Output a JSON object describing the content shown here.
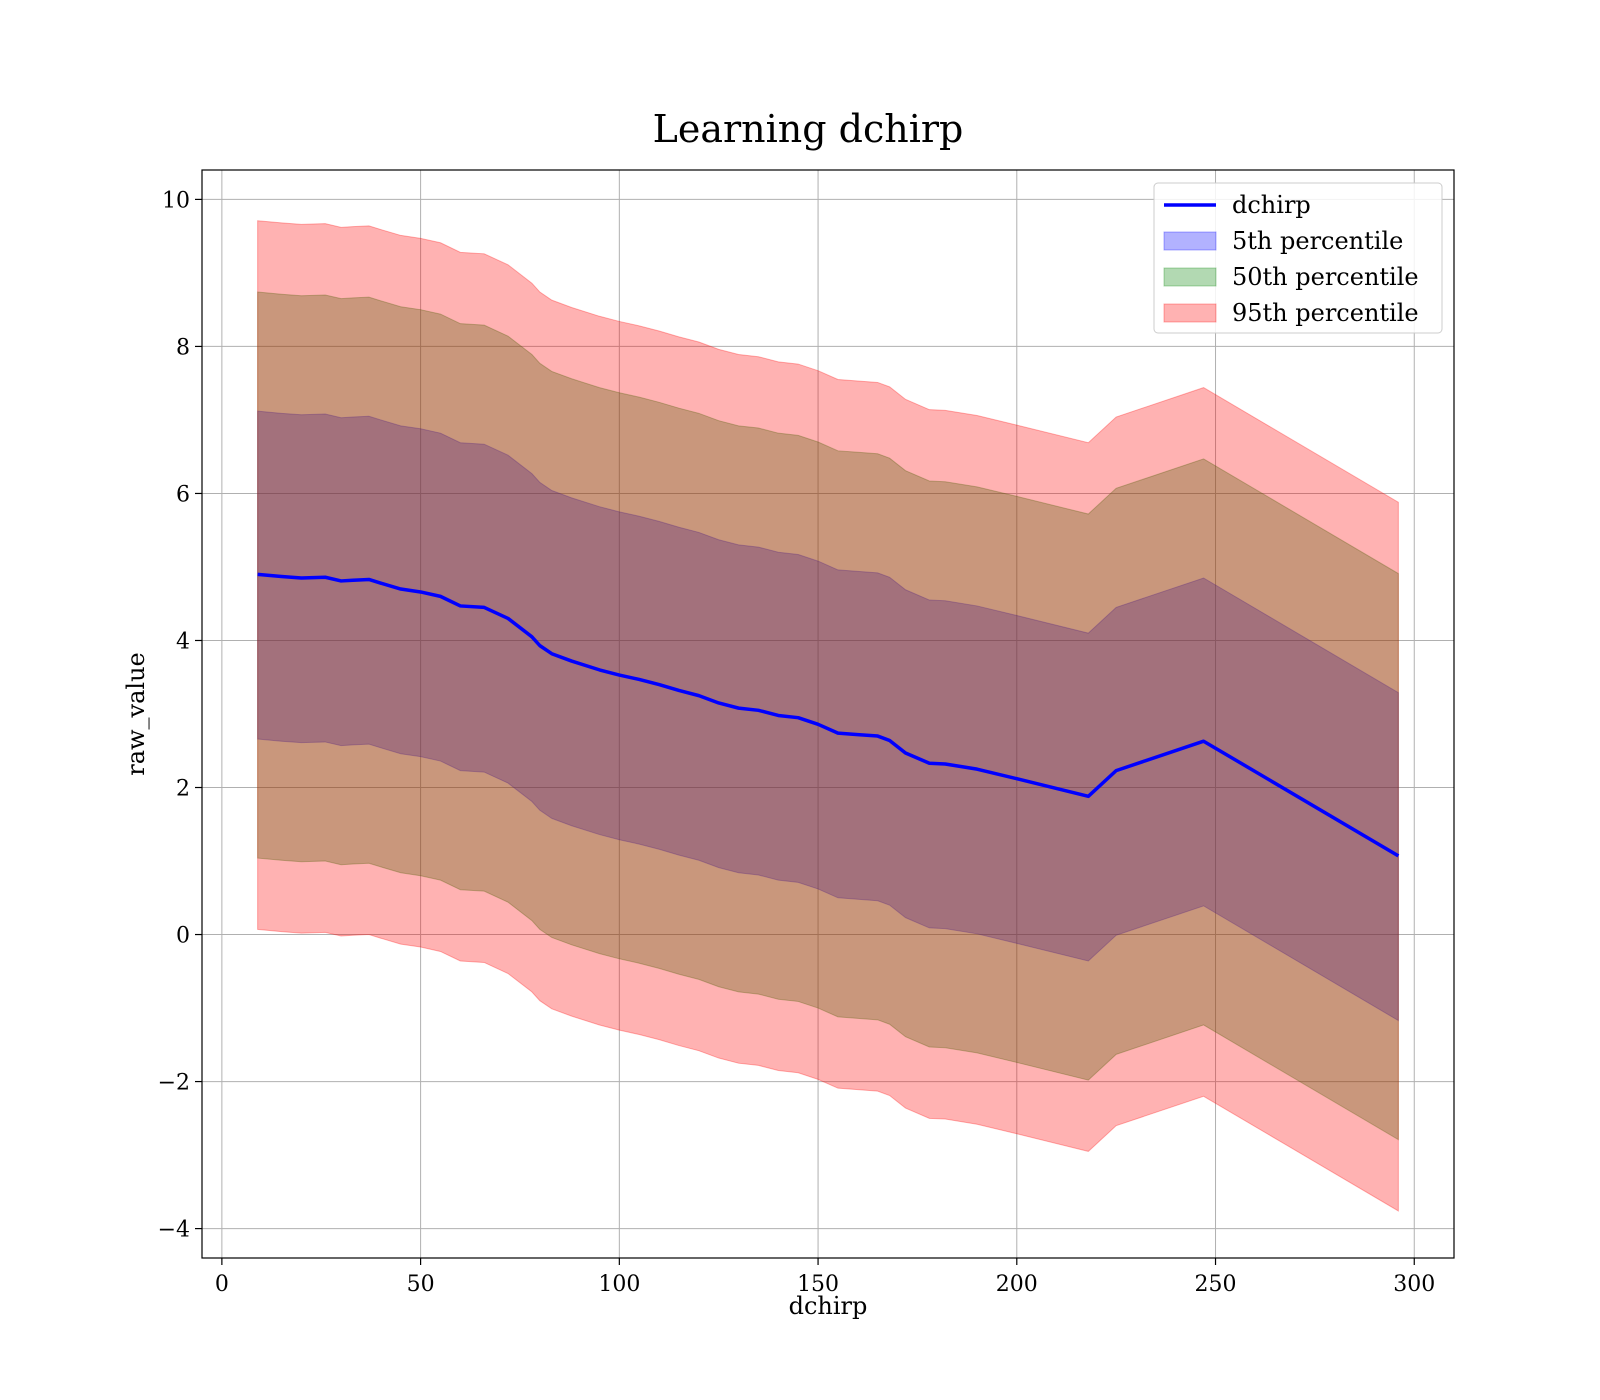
{
  "chart_data": {
    "type": "line",
    "title": "Learning dchirp",
    "xlabel": "dchirp",
    "ylabel": "raw_value",
    "xlim": [
      -5,
      310
    ],
    "ylim": [
      -4.4,
      10.4
    ],
    "xticks": [
      0,
      50,
      100,
      150,
      200,
      250,
      300
    ],
    "yticks": [
      -4,
      -2,
      0,
      2,
      4,
      6,
      8,
      10
    ],
    "xtick_labels": [
      "0",
      "50",
      "100",
      "150",
      "200",
      "250",
      "300"
    ],
    "ytick_labels": [
      "−4",
      "−2",
      "0",
      "2",
      "4",
      "6",
      "8",
      "10"
    ],
    "grid": true,
    "legend_position": "top-right",
    "x": [
      9,
      15,
      20,
      26,
      30,
      33,
      37,
      40,
      45,
      50,
      55,
      60,
      66,
      72,
      78,
      80,
      83,
      88,
      95,
      100,
      105,
      110,
      115,
      120,
      125,
      130,
      135,
      140,
      145,
      150,
      155,
      160,
      165,
      168,
      172,
      178,
      182,
      190,
      200,
      218,
      225,
      247,
      296
    ],
    "series": [
      {
        "name": "dchirp",
        "kind": "line",
        "color": "#0000ff",
        "values": [
          4.9,
          4.87,
          4.85,
          4.86,
          4.81,
          4.82,
          4.83,
          4.78,
          4.7,
          4.66,
          4.6,
          4.47,
          4.45,
          4.3,
          4.05,
          3.93,
          3.82,
          3.72,
          3.6,
          3.53,
          3.47,
          3.4,
          3.32,
          3.25,
          3.15,
          3.08,
          3.05,
          2.98,
          2.95,
          2.86,
          2.74,
          2.72,
          2.7,
          2.64,
          2.47,
          2.33,
          2.32,
          2.25,
          2.12,
          1.88,
          2.23,
          2.63,
          1.07
        ]
      },
      {
        "name": "5th percentile",
        "kind": "band",
        "color": "#0000ff",
        "opacity": 0.3,
        "lower": [
          2.66,
          2.63,
          2.61,
          2.62,
          2.57,
          2.58,
          2.59,
          2.54,
          2.46,
          2.42,
          2.36,
          2.23,
          2.21,
          2.06,
          1.81,
          1.69,
          1.58,
          1.48,
          1.36,
          1.29,
          1.23,
          1.16,
          1.08,
          1.01,
          0.91,
          0.84,
          0.81,
          0.74,
          0.71,
          0.62,
          0.5,
          0.48,
          0.46,
          0.4,
          0.23,
          0.09,
          0.08,
          0.01,
          -0.12,
          -0.36,
          -0.01,
          0.39,
          -1.17
        ],
        "upper": [
          7.12,
          7.09,
          7.07,
          7.08,
          7.03,
          7.04,
          7.05,
          7.0,
          6.92,
          6.88,
          6.82,
          6.69,
          6.67,
          6.52,
          6.27,
          6.15,
          6.04,
          5.94,
          5.82,
          5.75,
          5.69,
          5.62,
          5.54,
          5.47,
          5.37,
          5.3,
          5.27,
          5.2,
          5.17,
          5.08,
          4.96,
          4.94,
          4.92,
          4.86,
          4.69,
          4.55,
          4.54,
          4.47,
          4.34,
          4.1,
          4.45,
          4.85,
          3.29
        ]
      },
      {
        "name": "50th percentile",
        "kind": "band",
        "color": "#008000",
        "opacity": 0.3,
        "lower": [
          1.04,
          1.01,
          0.99,
          1.0,
          0.95,
          0.96,
          0.97,
          0.92,
          0.84,
          0.8,
          0.74,
          0.61,
          0.59,
          0.44,
          0.19,
          0.07,
          -0.04,
          -0.14,
          -0.26,
          -0.33,
          -0.39,
          -0.46,
          -0.54,
          -0.61,
          -0.71,
          -0.78,
          -0.81,
          -0.88,
          -0.91,
          -1.0,
          -1.12,
          -1.14,
          -1.16,
          -1.22,
          -1.39,
          -1.53,
          -1.54,
          -1.61,
          -1.74,
          -1.98,
          -1.63,
          -1.23,
          -2.79
        ],
        "upper": [
          8.74,
          8.71,
          8.69,
          8.7,
          8.65,
          8.66,
          8.67,
          8.62,
          8.54,
          8.5,
          8.44,
          8.31,
          8.29,
          8.14,
          7.89,
          7.77,
          7.66,
          7.56,
          7.44,
          7.37,
          7.31,
          7.24,
          7.16,
          7.09,
          6.99,
          6.92,
          6.89,
          6.82,
          6.79,
          6.7,
          6.58,
          6.56,
          6.54,
          6.48,
          6.31,
          6.17,
          6.16,
          6.09,
          5.96,
          5.72,
          6.07,
          6.47,
          4.91
        ]
      },
      {
        "name": "95th percentile",
        "kind": "band",
        "color": "#ff0000",
        "opacity": 0.3,
        "lower": [
          0.07,
          0.04,
          0.02,
          0.03,
          -0.02,
          -0.01,
          0.0,
          -0.05,
          -0.13,
          -0.17,
          -0.23,
          -0.36,
          -0.38,
          -0.53,
          -0.78,
          -0.9,
          -1.01,
          -1.11,
          -1.23,
          -1.3,
          -1.36,
          -1.43,
          -1.51,
          -1.58,
          -1.68,
          -1.75,
          -1.78,
          -1.85,
          -1.88,
          -1.97,
          -2.09,
          -2.11,
          -2.13,
          -2.19,
          -2.36,
          -2.5,
          -2.51,
          -2.58,
          -2.71,
          -2.95,
          -2.6,
          -2.2,
          -3.76
        ],
        "upper": [
          9.71,
          9.68,
          9.66,
          9.67,
          9.62,
          9.63,
          9.64,
          9.59,
          9.51,
          9.47,
          9.41,
          9.28,
          9.26,
          9.11,
          8.86,
          8.74,
          8.63,
          8.53,
          8.41,
          8.34,
          8.28,
          8.21,
          8.13,
          8.06,
          7.96,
          7.89,
          7.86,
          7.79,
          7.76,
          7.67,
          7.55,
          7.53,
          7.51,
          7.45,
          7.28,
          7.14,
          7.13,
          7.06,
          6.93,
          6.69,
          7.04,
          7.44,
          5.88
        ]
      }
    ]
  }
}
